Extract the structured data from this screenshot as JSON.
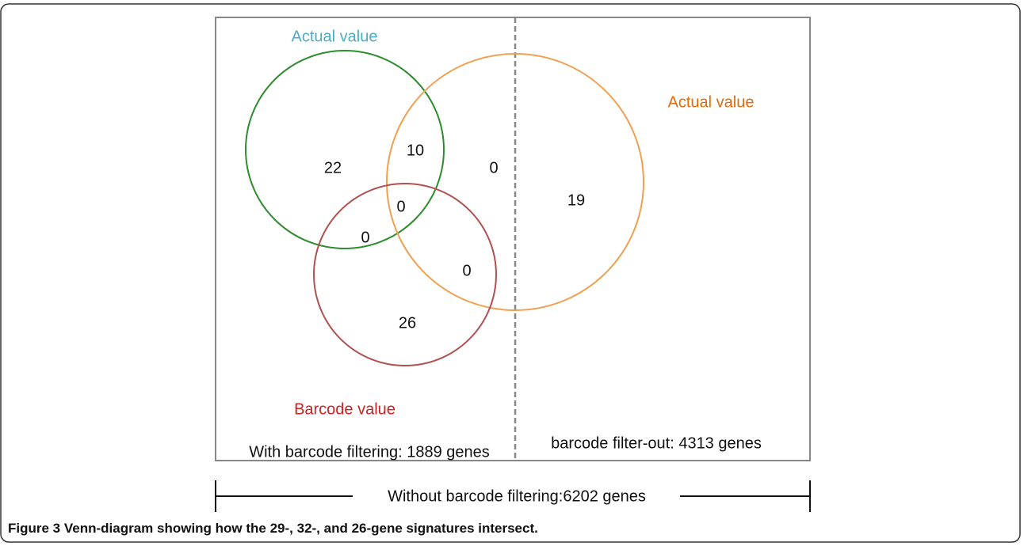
{
  "diagram": {
    "sets": [
      {
        "label": "Actual value"
      },
      {
        "label": "Actual value"
      },
      {
        "label": "Barcode value"
      }
    ],
    "regions": [
      "22",
      "10",
      "0",
      "19",
      "0",
      "0",
      "0",
      "26"
    ],
    "left_label": "With barcode filtering: 1889 genes",
    "right_label": "barcode filter-out: 4313 genes",
    "span_label": "Without barcode filtering:6202 genes"
  },
  "caption": {
    "label": "Figure 3",
    "text": "Venn-diagram showing how the 29-, 32-, and 26-gene signatures intersect."
  }
}
